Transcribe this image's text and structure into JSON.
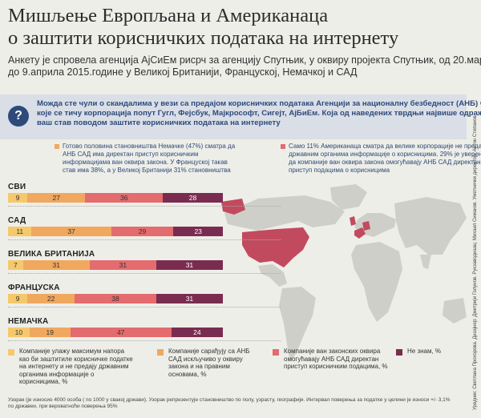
{
  "header": {
    "title_lines": [
      "Мишљење Европљана и Американаца",
      "о заштити корисничких података на интернету"
    ],
    "subtitle_lines": [
      "Анкету је спровела агенција АјСиЕм рисрч за агенцију Спутњик, у оквиру пројекта Спутњик, од 20.марта",
      "до 9.априла 2015.године у Великој Британији, Француској, Немачкој и САД"
    ]
  },
  "question": {
    "icon": "?",
    "lines": [
      "Можда сте чули о скандалима у вези са предајом корисничких података Агенцији за националну безбедност (АНБ) САД,",
      "које се тичу корпорација попут Гугл, Фејсбук, Мајкрософт, Сигејт, АјБиЕм. Која од наведених тврдњи највише одражава",
      "ваш став поводом заштите корисничких података на интернету"
    ]
  },
  "callouts": {
    "left": [
      "Готово половина становништва Немачке (47%) сматра да",
      "АНБ САД има директан приступ корисничким",
      "информацијама ван оквира закона. У Француској такав",
      "став има 38%, а у Великој Британији 31% становништва"
    ],
    "right": [
      "Само 11% Американаца сматра да велике корпорације не предају",
      "државним органима информације о корисницима. 29% је уверено",
      "да компаније ван оквира закона омогућавају АНБ САД директан",
      "приступ подацима о корисницима"
    ]
  },
  "colors": {
    "yellow": "#f5c96b",
    "orange": "#f0a85f",
    "red": "#e46b6e",
    "purple": "#7a2c50",
    "accent_blue": "#2e4a7a",
    "map_land": "#cfcfc9",
    "map_highlight": "#c24a5e"
  },
  "chart_data": {
    "type": "bar",
    "orientation": "horizontal-stacked-100",
    "categories": [
      "СВИ",
      "САД",
      "ВЕЛИКА БРИТАНИЈА",
      "ФРАНЦУСКА",
      "НЕМАЧКА"
    ],
    "series": [
      {
        "name": "Компаније улажу максимум напора као би заштитиле корисничке податке на интернету и не предају државним органима информације о корисницима, %",
        "color": "#f5c96b",
        "values": [
          9,
          11,
          7,
          9,
          10
        ]
      },
      {
        "name": "Компаније сарађују са АНБ САД искључиво у оквиру закона и на правним основама, %",
        "color": "#f0a85f",
        "values": [
          27,
          37,
          31,
          22,
          19
        ]
      },
      {
        "name": "Компаније ван законских оквира омогућавају АНБ САД директан приступ корисничким подацима, %",
        "color": "#e46b6e",
        "values": [
          36,
          29,
          31,
          38,
          47
        ]
      },
      {
        "name": "Не знам, %",
        "color": "#7a2c50",
        "values": [
          28,
          23,
          31,
          31,
          24
        ]
      }
    ]
  },
  "legend": [
    {
      "lines": [
        "Компаније улажу максимум напора",
        "као би заштитиле корисничке податке",
        "на интернету и не предају државним",
        "органима информације о",
        "корисницима, %"
      ]
    },
    {
      "lines": [
        "Компаније сарађују са АНБ",
        "САД искључиво у оквиру",
        "закона и на правним",
        "основама, %"
      ]
    },
    {
      "lines": [
        "Компаније ван законских оквира",
        "омогућавају АНБ САД директан",
        "приступ корисничким подацима, %"
      ]
    },
    {
      "lines": [
        "Не знам, %"
      ]
    }
  ],
  "footnote": [
    "Узорак (је износио 4000 особа ( по 1000 у свакој држави). Узорак репрезентује становништво по полу, узрасту, географији. Интервал поверења  за податке у целини је износи +/- 3,1%",
    "по државеи, при вероватноћи поверења 95%"
  ],
  "credits": "Уредник: Светлана Прохорова. Дизајнер: Дмитрији Голунов. Рукзаводиаац: Михаил Симаков. Уметнички директор: Антон Степанов",
  "map": {
    "icon": "world-map"
  }
}
